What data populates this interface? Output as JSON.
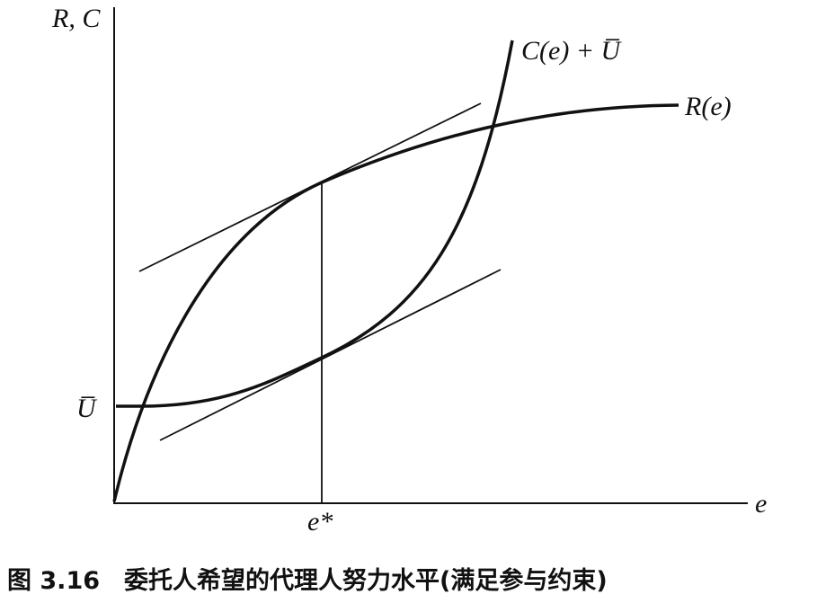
{
  "labels": {
    "y_axis": "R, C",
    "x_axis": "e",
    "cost_curve": "C(e) + U̅",
    "revenue_curve": "R(e)",
    "reservation_utility": "U̅",
    "optimum": "e*"
  },
  "caption": "图 3.16　委托人希望的代理人努力水平(满足参与约束)"
}
